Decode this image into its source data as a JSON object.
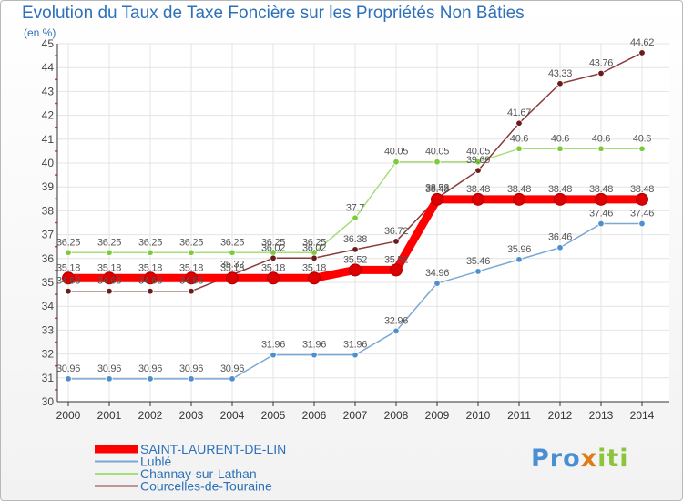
{
  "chart_data": {
    "type": "line",
    "title": "Evolution du Taux de Taxe Foncière sur les Propriétés Non Bâties",
    "subtitle": "(en %)",
    "xlabel": "",
    "ylabel": "(en %)",
    "x": [
      "2000",
      "2001",
      "2002",
      "2003",
      "2004",
      "2005",
      "2006",
      "2007",
      "2008",
      "2009",
      "2010",
      "2011",
      "2012",
      "2013",
      "2014"
    ],
    "ylim": [
      30,
      45
    ],
    "yticks": [
      "30",
      "31",
      "32",
      "33",
      "34",
      "35",
      "36",
      "37",
      "38",
      "39",
      "40",
      "41",
      "42",
      "43",
      "44",
      "45"
    ],
    "grid": true,
    "legend_position": "bottom-left",
    "series": [
      {
        "name": "SAINT-LAURENT-DE-LIN",
        "color": "#ff0000",
        "marker_color": "#dd0000",
        "values": [
          35.18,
          35.18,
          35.18,
          35.18,
          35.18,
          35.18,
          35.18,
          35.52,
          35.52,
          38.48,
          38.48,
          38.48,
          38.48,
          38.48,
          38.48
        ],
        "labels": [
          "35.18",
          "35.18",
          "35.18",
          "35.18",
          "35.18",
          "35.18",
          "35.18",
          "35.52",
          "35.52",
          "38.48",
          "38.48",
          "38.48",
          "38.48",
          "38.48",
          "38.48"
        ]
      },
      {
        "name": "Lublé",
        "color": "#7aa7d6",
        "marker_color": "#4e8fcc",
        "values": [
          30.96,
          30.96,
          30.96,
          30.96,
          30.96,
          31.96,
          31.96,
          31.96,
          32.96,
          34.96,
          35.46,
          35.96,
          36.46,
          37.46,
          37.46
        ],
        "labels": [
          "30.96",
          "30.96",
          "30.96",
          "30.96",
          "30.96",
          "31.96",
          "31.96",
          "31.96",
          "32.96",
          "34.96",
          "35.46",
          "35.96",
          "36.46",
          "37.46",
          "37.46"
        ]
      },
      {
        "name": "Channay-sur-Lathan",
        "color": "#a6de7a",
        "marker_color": "#7ccc3a",
        "values": [
          36.25,
          36.25,
          36.25,
          36.25,
          36.25,
          36.25,
          36.25,
          37.7,
          40.05,
          40.05,
          40.05,
          40.6,
          40.6,
          40.6,
          40.6
        ],
        "labels": [
          "36.25",
          "36.25",
          "36.25",
          "36.25",
          "36.25",
          "36.25",
          "36.25",
          "37.7",
          "40.05",
          "40.05",
          "40.05",
          "40.6",
          "40.6",
          "40.6",
          "40.6"
        ]
      },
      {
        "name": "Courcelles-de-Touraine",
        "color": "#8a3a3a",
        "marker_color": "#6e1a1a",
        "values": [
          34.63,
          34.63,
          34.63,
          34.63,
          35.32,
          36.02,
          36.02,
          36.38,
          36.72,
          38.53,
          39.69,
          41.67,
          43.33,
          43.76,
          44.62
        ],
        "labels": [
          "34.63",
          "34.63",
          "34.63",
          "34.63",
          "35.32",
          "36.02",
          "36.02",
          "36.38",
          "36.72",
          "38.53",
          "39.69",
          "41.67",
          "43.33",
          "43.76",
          "44.62"
        ]
      }
    ]
  },
  "logo": {
    "part1": "Pro",
    "part2": "x",
    "part3": "iti"
  }
}
